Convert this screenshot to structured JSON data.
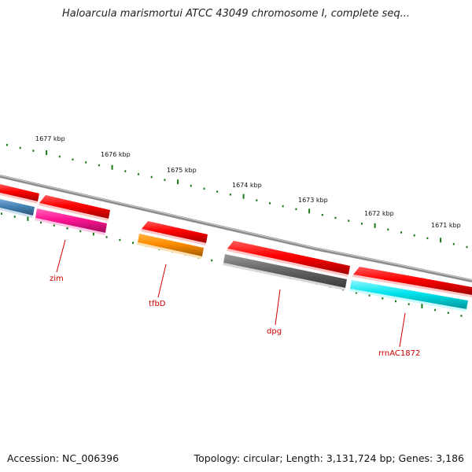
{
  "title": "Haloarcula marismortui ATCC 43049 chromosome I, complete seq...",
  "footer": {
    "accession": "Accession: NC_006396",
    "summary": "Topology: circular; Length: 3,131,724 bp; Genes: 3,186"
  },
  "kbp_ticks": [
    "1677 kbp",
    "1676 kbp",
    "1675 kbp",
    "1674 kbp",
    "1673 kbp",
    "1672 kbp",
    "1671 kbp"
  ],
  "gene_labels": [
    "zim",
    "tfbD",
    "dpg",
    "rrnAC1872"
  ],
  "colors": {
    "backbone": "#8c8c8c",
    "forward_gene": "#ff0000",
    "tick": "#1a7a1a",
    "label": "#cc0000",
    "zim": "#ff1493",
    "tfbD": "#ff8c00",
    "dpg": "#666666",
    "rrnAC1872": "#00e5ee",
    "unlabeled_reverse": "#4682b4"
  }
}
